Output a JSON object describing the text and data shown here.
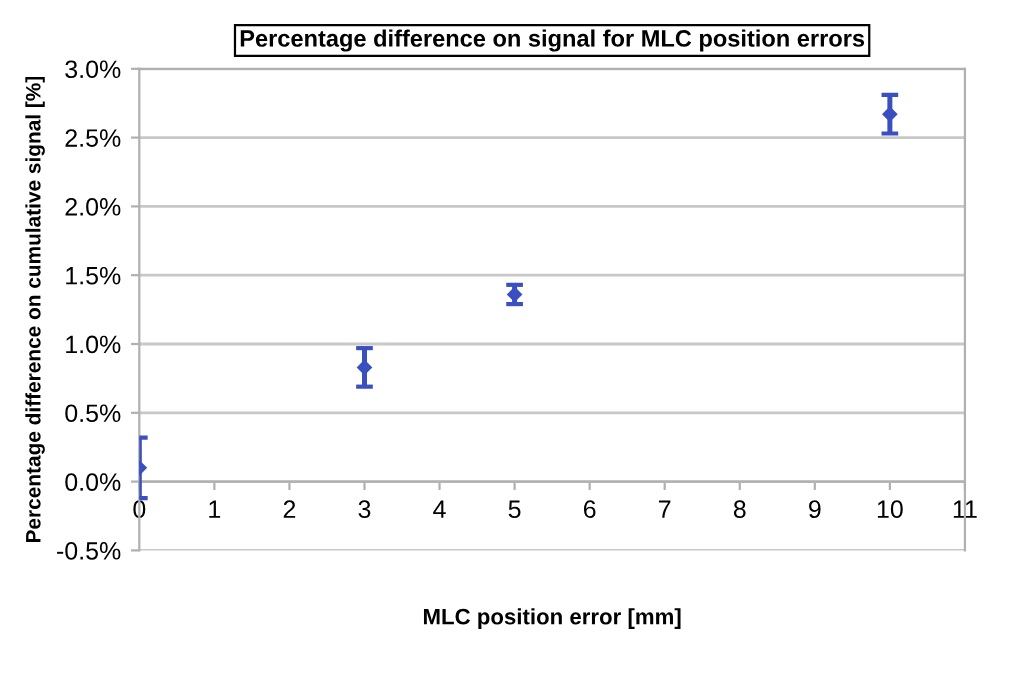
{
  "chart_data": {
    "type": "scatter",
    "title": "Percentage difference on signal for MLC position errors",
    "xlabel": "MLC position error [mm]",
    "ylabel": "Percentage difference on cumulative signal [%]",
    "series": [
      {
        "color": "#3a4fc0",
        "x": [
          0,
          3,
          5,
          10
        ],
        "values": [
          0.1,
          0.83,
          1.36,
          2.67
        ],
        "errors": [
          0.22,
          0.14,
          0.07,
          0.14
        ]
      }
    ],
    "xlim": [
      0,
      11
    ],
    "xticks": [
      0,
      1,
      2,
      3,
      4,
      5,
      6,
      7,
      8,
      9,
      10,
      11
    ],
    "ylim": [
      -0.5,
      3.0
    ],
    "yticks": [
      {
        "value": -0.5,
        "label": "-0.5%"
      },
      {
        "value": 0,
        "label": "0.0%"
      },
      {
        "value": 0.5,
        "label": "0.5%"
      },
      {
        "value": 1.0,
        "label": "1.0%"
      },
      {
        "value": 1.5,
        "label": "1.5%"
      },
      {
        "value": 2.0,
        "label": "2.0%"
      },
      {
        "value": 2.5,
        "label": "2.5%"
      },
      {
        "value": 3.0,
        "label": "3.0%"
      }
    ],
    "grid": "y",
    "marker": "diamond",
    "legend": false
  }
}
